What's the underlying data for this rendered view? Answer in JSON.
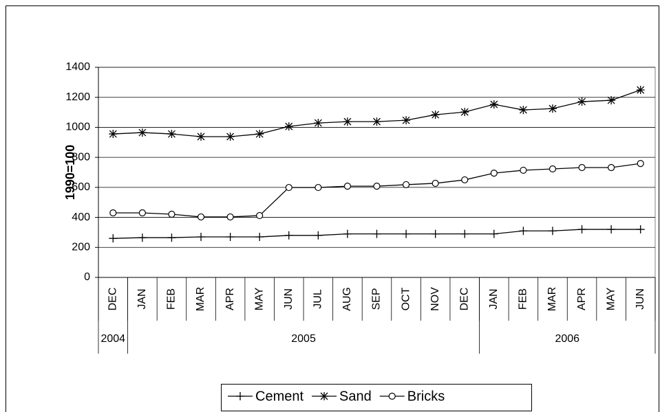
{
  "chart_data": {
    "type": "line",
    "y_label": "1990=100",
    "categories": [
      "DEC",
      "JAN",
      "FEB",
      "MAR",
      "APR",
      "MAY",
      "JUN",
      "JUL",
      "AUG",
      "SEP",
      "OCT",
      "NOV",
      "DEC",
      "JAN",
      "FEB",
      "MAR",
      "APR",
      "MAY",
      "JUN"
    ],
    "years": [
      "2004",
      "2005",
      null,
      null,
      null,
      null,
      null,
      null,
      null,
      null,
      null,
      null,
      null,
      "2006",
      null,
      null,
      null,
      null,
      null
    ],
    "series": [
      {
        "name": "Cement",
        "color": "#000000",
        "marker": "plus",
        "values": [
          260,
          265,
          265,
          270,
          270,
          270,
          280,
          280,
          290,
          290,
          290,
          290,
          290,
          290,
          310,
          310,
          320,
          320,
          320
        ]
      },
      {
        "name": "Sand",
        "color": "#000000",
        "marker": "asterisk",
        "values": [
          956,
          965,
          956,
          938,
          938,
          956,
          1006,
          1029,
          1038,
          1038,
          1047,
          1084,
          1102,
          1153,
          1116,
          1125,
          1171,
          1180,
          1249
        ]
      },
      {
        "name": "Bricks",
        "color": "#000000",
        "marker": "circle",
        "values": [
          430,
          430,
          421,
          403,
          403,
          412,
          599,
          599,
          608,
          608,
          618,
          627,
          650,
          695,
          714,
          723,
          732,
          732,
          759
        ]
      }
    ],
    "ylim": [
      0,
      1400
    ],
    "yticks": [
      0,
      200,
      400,
      600,
      800,
      1000,
      1200,
      1400
    ],
    "grid": true
  }
}
